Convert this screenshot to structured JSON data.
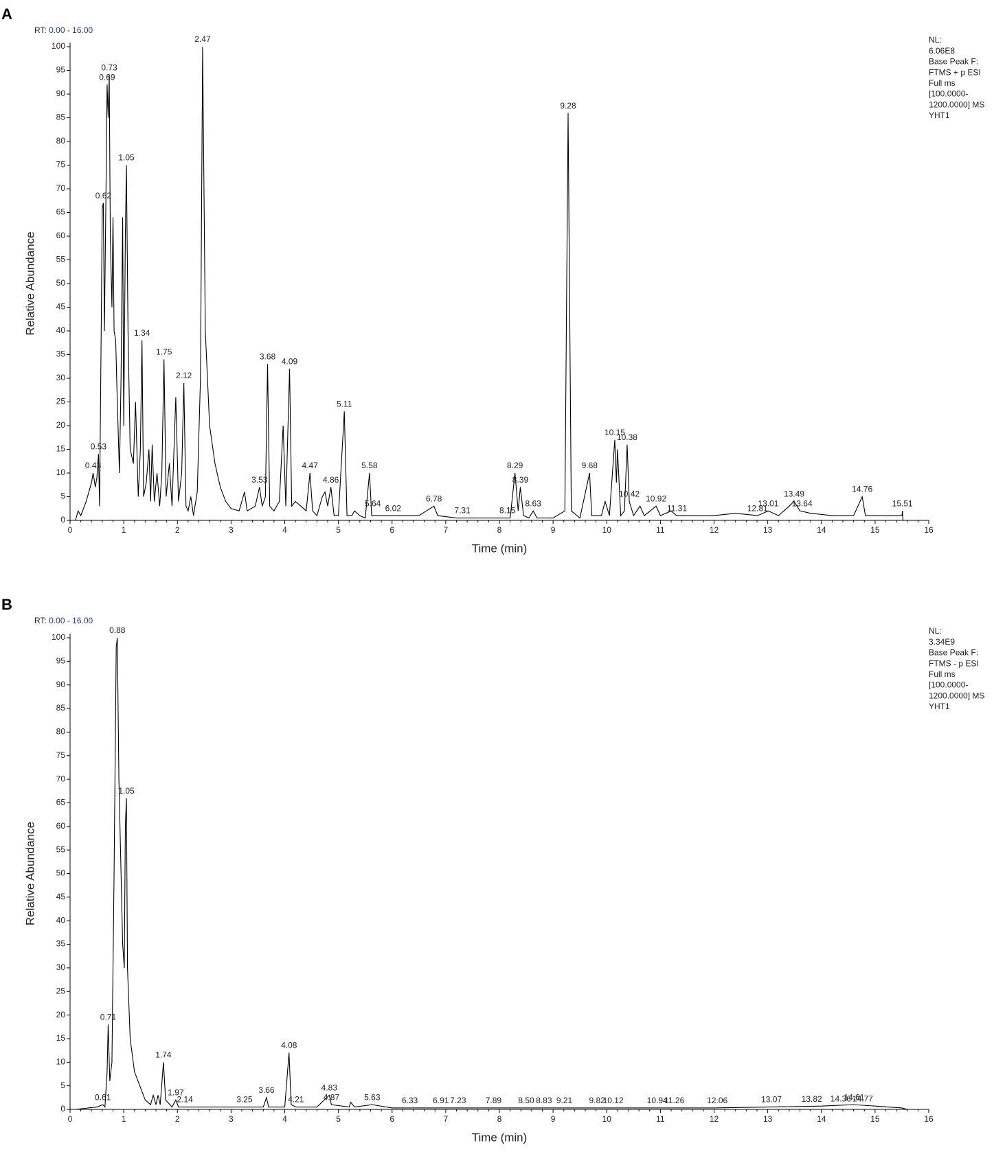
{
  "chart_data": [
    {
      "type": "line",
      "panel": "A",
      "rt_label": "RT:",
      "rt_range": "0.00 - 16.00",
      "info": [
        "NL:",
        "6.06E8",
        "Base Peak F:",
        "FTMS + p ESI",
        "Full ms",
        "[100.0000-",
        "1200.0000]  MS",
        "YHT1"
      ],
      "x_label": "Time (min)",
      "y_label": "Relative Abundance",
      "color": "#000000",
      "range_color": "#1f3a93",
      "xlim": [
        0,
        16
      ],
      "xticks": [
        0,
        1,
        2,
        3,
        4,
        5,
        6,
        7,
        8,
        9,
        10,
        11,
        12,
        13,
        14,
        15,
        16
      ],
      "ylim": [
        0,
        100
      ],
      "yticks": [
        0,
        5,
        10,
        15,
        20,
        25,
        30,
        35,
        40,
        45,
        50,
        55,
        60,
        65,
        70,
        75,
        80,
        85,
        90,
        95,
        100
      ],
      "x": [
        0.1,
        0.15,
        0.2,
        0.3,
        0.4,
        0.43,
        0.47,
        0.5,
        0.53,
        0.55,
        0.58,
        0.6,
        0.62,
        0.64,
        0.67,
        0.69,
        0.71,
        0.73,
        0.75,
        0.78,
        0.8,
        0.82,
        0.85,
        0.88,
        0.92,
        0.95,
        0.98,
        1.0,
        1.03,
        1.05,
        1.08,
        1.12,
        1.18,
        1.22,
        1.27,
        1.31,
        1.34,
        1.37,
        1.42,
        1.47,
        1.5,
        1.53,
        1.57,
        1.62,
        1.67,
        1.71,
        1.75,
        1.79,
        1.85,
        1.9,
        1.97,
        2.02,
        2.08,
        2.12,
        2.16,
        2.2,
        2.25,
        2.3,
        2.37,
        2.43,
        2.47,
        2.52,
        2.6,
        2.7,
        2.8,
        2.9,
        3.0,
        3.15,
        3.25,
        3.3,
        3.45,
        3.53,
        3.58,
        3.64,
        3.68,
        3.72,
        3.8,
        3.9,
        3.97,
        4.02,
        4.09,
        4.13,
        4.2,
        4.3,
        4.4,
        4.47,
        4.52,
        4.6,
        4.7,
        4.75,
        4.8,
        4.86,
        4.92,
        5.0,
        5.11,
        5.16,
        5.25,
        5.3,
        5.4,
        5.5,
        5.58,
        5.62,
        5.7,
        6.0,
        6.2,
        6.5,
        6.78,
        6.85,
        7.2,
        7.8,
        8.2,
        8.29,
        8.35,
        8.39,
        8.45,
        8.55,
        8.63,
        8.7,
        9.0,
        9.22,
        9.28,
        9.34,
        9.5,
        9.68,
        9.72,
        9.9,
        9.97,
        10.05,
        10.15,
        10.18,
        10.2,
        10.26,
        10.33,
        10.38,
        10.42,
        10.5,
        10.62,
        10.7,
        10.92,
        11.0,
        11.2,
        11.3,
        11.6,
        12.0,
        12.4,
        12.81,
        13.01,
        13.2,
        13.4,
        13.49,
        13.6,
        13.8,
        14.2,
        14.6,
        14.76,
        14.82,
        15.2,
        15.5,
        15.51,
        15.52
      ],
      "values": [
        0,
        2,
        1,
        4,
        8,
        10,
        7,
        9,
        14,
        3,
        40,
        66,
        67,
        40,
        70,
        92,
        85,
        94,
        60,
        45,
        64,
        40,
        38,
        25,
        10,
        30,
        64,
        20,
        60,
        75,
        40,
        15,
        12,
        25,
        5,
        15,
        38,
        5,
        8,
        15,
        4,
        16,
        4,
        10,
        3,
        10,
        34,
        5,
        12,
        3,
        26,
        4,
        10,
        29,
        3,
        2,
        5,
        1,
        6,
        30,
        100,
        40,
        20,
        12,
        7,
        4,
        2.5,
        2,
        6,
        2,
        3,
        7,
        3,
        5,
        33,
        3,
        2,
        4,
        20,
        3,
        32,
        3,
        4,
        3,
        2,
        10,
        2,
        1,
        5,
        6,
        3,
        7,
        1,
        1,
        23,
        1,
        1,
        2,
        1,
        0.5,
        10,
        1,
        1,
        1,
        1,
        1,
        3,
        1,
        0.5,
        0.5,
        0.5,
        10,
        2,
        7,
        1,
        0.5,
        2,
        0.5,
        0.5,
        2,
        86,
        2,
        0.5,
        10,
        1,
        1,
        4,
        1,
        17,
        8,
        15,
        1,
        2,
        16,
        4,
        1,
        3,
        1,
        3,
        1,
        2,
        1,
        1,
        1,
        1.5,
        1,
        2,
        1,
        3,
        4,
        2,
        1.5,
        1,
        1,
        5,
        1,
        1,
        1,
        2,
        0
      ],
      "annotations": [
        {
          "text": "0.43",
          "x": 0.43,
          "y": 10
        },
        {
          "text": "0.53",
          "x": 0.53,
          "y": 14
        },
        {
          "text": "0.62",
          "x": 0.62,
          "y": 67
        },
        {
          "text": "0.69",
          "x": 0.69,
          "y": 92
        },
        {
          "text": "0.73",
          "x": 0.73,
          "y": 94
        },
        {
          "text": "1.05",
          "x": 1.05,
          "y": 75
        },
        {
          "text": "1.34",
          "x": 1.34,
          "y": 38
        },
        {
          "text": "1.75",
          "x": 1.75,
          "y": 34
        },
        {
          "text": "2.12",
          "x": 2.12,
          "y": 29
        },
        {
          "text": "2.47",
          "x": 2.47,
          "y": 100
        },
        {
          "text": "3.53",
          "x": 3.53,
          "y": 7
        },
        {
          "text": "3.68",
          "x": 3.68,
          "y": 33
        },
        {
          "text": "4.09",
          "x": 4.09,
          "y": 32
        },
        {
          "text": "4.47",
          "x": 4.47,
          "y": 10
        },
        {
          "text": "4.86",
          "x": 4.86,
          "y": 7
        },
        {
          "text": "5.11",
          "x": 5.11,
          "y": 23
        },
        {
          "text": "5.58",
          "x": 5.58,
          "y": 10
        },
        {
          "text": "5.64",
          "x": 5.64,
          "y": 2
        },
        {
          "text": "6.02",
          "x": 6.02,
          "y": 1
        },
        {
          "text": "6.78",
          "x": 6.78,
          "y": 3
        },
        {
          "text": "7.31",
          "x": 7.31,
          "y": 0.5
        },
        {
          "text": "8.15",
          "x": 8.15,
          "y": 0.5
        },
        {
          "text": "8.29",
          "x": 8.29,
          "y": 10
        },
        {
          "text": "8.39",
          "x": 8.39,
          "y": 7
        },
        {
          "text": "8.63",
          "x": 8.63,
          "y": 2
        },
        {
          "text": "9.28",
          "x": 9.28,
          "y": 86
        },
        {
          "text": "9.68",
          "x": 9.68,
          "y": 10
        },
        {
          "text": "10.15",
          "x": 10.15,
          "y": 17
        },
        {
          "text": "10.38",
          "x": 10.38,
          "y": 16
        },
        {
          "text": "10.42",
          "x": 10.42,
          "y": 4
        },
        {
          "text": "10.92",
          "x": 10.92,
          "y": 3
        },
        {
          "text": "11.31",
          "x": 11.31,
          "y": 1
        },
        {
          "text": "12.81",
          "x": 12.81,
          "y": 1
        },
        {
          "text": "13.01",
          "x": 13.01,
          "y": 2
        },
        {
          "text": "13.49",
          "x": 13.49,
          "y": 4
        },
        {
          "text": "13.64",
          "x": 13.64,
          "y": 2
        },
        {
          "text": "14.76",
          "x": 14.76,
          "y": 5
        },
        {
          "text": "15.51",
          "x": 15.51,
          "y": 2
        }
      ]
    },
    {
      "type": "line",
      "panel": "B",
      "rt_label": "RT:",
      "rt_range": "0.00 - 16.00",
      "info": [
        "NL:",
        "3.34E9",
        "Base Peak F:",
        "FTMS - p ESI",
        "Full ms",
        "[100.0000-",
        "1200.0000]  MS",
        "YHT1"
      ],
      "x_label": "Time (min)",
      "y_label": "Relative Abundance",
      "color": "#000000",
      "range_color": "#1f3a93",
      "xlim": [
        0,
        16
      ],
      "xticks": [
        0,
        1,
        2,
        3,
        4,
        5,
        6,
        7,
        8,
        9,
        10,
        11,
        12,
        13,
        14,
        15,
        16
      ],
      "ylim": [
        0,
        100
      ],
      "yticks": [
        0,
        5,
        10,
        15,
        20,
        25,
        30,
        35,
        40,
        45,
        50,
        55,
        60,
        65,
        70,
        75,
        80,
        85,
        90,
        95,
        100
      ],
      "x": [
        0.1,
        0.5,
        0.61,
        0.65,
        0.69,
        0.71,
        0.74,
        0.78,
        0.82,
        0.86,
        0.88,
        0.91,
        0.95,
        0.98,
        1.01,
        1.03,
        1.05,
        1.07,
        1.12,
        1.2,
        1.3,
        1.4,
        1.5,
        1.55,
        1.6,
        1.64,
        1.68,
        1.74,
        1.78,
        1.9,
        1.97,
        2.02,
        2.14,
        2.5,
        3.25,
        3.6,
        3.66,
        3.7,
        4.0,
        4.08,
        4.12,
        4.21,
        4.6,
        4.83,
        4.87,
        5.2,
        5.23,
        5.3,
        5.63,
        6,
        8,
        10,
        12,
        13,
        14,
        14.6,
        15,
        15.5,
        15.6
      ],
      "values": [
        0,
        0.5,
        1,
        0.5,
        8,
        18,
        6,
        10,
        50,
        98,
        100,
        70,
        50,
        35,
        30,
        60,
        66,
        30,
        15,
        8,
        5,
        2,
        1,
        3,
        1,
        3,
        1,
        10,
        2,
        0.5,
        2,
        0.5,
        0.5,
        0.5,
        0.5,
        0.5,
        2.5,
        0.5,
        0.5,
        12,
        1,
        0.5,
        0.5,
        3,
        1,
        0.5,
        1.5,
        0.5,
        1,
        0.3,
        0.3,
        0.3,
        0.3,
        0.5,
        0.7,
        1,
        0.7,
        0.3,
        0
      ],
      "annotations": [
        {
          "text": "0.61",
          "x": 0.61,
          "y": 1
        },
        {
          "text": "0.71",
          "x": 0.71,
          "y": 18
        },
        {
          "text": "0.88",
          "x": 0.88,
          "y": 100
        },
        {
          "text": "1.05",
          "x": 1.05,
          "y": 66
        },
        {
          "text": "1.74",
          "x": 1.74,
          "y": 10
        },
        {
          "text": "1.97",
          "x": 1.97,
          "y": 2
        },
        {
          "text": "2.14",
          "x": 2.14,
          "y": 0.5
        },
        {
          "text": "3.25",
          "x": 3.25,
          "y": 0.5
        },
        {
          "text": "3.66",
          "x": 3.66,
          "y": 2.5
        },
        {
          "text": "4.08",
          "x": 4.08,
          "y": 12
        },
        {
          "text": "4.21",
          "x": 4.21,
          "y": 0.5
        },
        {
          "text": "4.83",
          "x": 4.83,
          "y": 3
        },
        {
          "text": "4.87",
          "x": 4.87,
          "y": 1
        },
        {
          "text": "5.63",
          "x": 5.63,
          "y": 1
        },
        {
          "text": "6.33",
          "x": 6.33,
          "y": 0.3
        },
        {
          "text": "6.91",
          "x": 6.91,
          "y": 0.3
        },
        {
          "text": "7.23",
          "x": 7.23,
          "y": 0.3
        },
        {
          "text": "7.89",
          "x": 7.89,
          "y": 0.3
        },
        {
          "text": "8.50",
          "x": 8.5,
          "y": 0.3
        },
        {
          "text": "8.83",
          "x": 8.83,
          "y": 0.3
        },
        {
          "text": "9.21",
          "x": 9.21,
          "y": 0.3
        },
        {
          "text": "9.82",
          "x": 9.82,
          "y": 0.3
        },
        {
          "text": "10.12",
          "x": 10.12,
          "y": 0.3
        },
        {
          "text": "10.94",
          "x": 10.94,
          "y": 0.3
        },
        {
          "text": "11.26",
          "x": 11.26,
          "y": 0.3
        },
        {
          "text": "12.06",
          "x": 12.06,
          "y": 0.3
        },
        {
          "text": "13.07",
          "x": 13.07,
          "y": 0.5
        },
        {
          "text": "13.82",
          "x": 13.82,
          "y": 0.6
        },
        {
          "text": "14.36",
          "x": 14.36,
          "y": 0.7
        },
        {
          "text": "14.61",
          "x": 14.61,
          "y": 1
        },
        {
          "text": "14.77",
          "x": 14.77,
          "y": 0.7
        }
      ]
    }
  ]
}
